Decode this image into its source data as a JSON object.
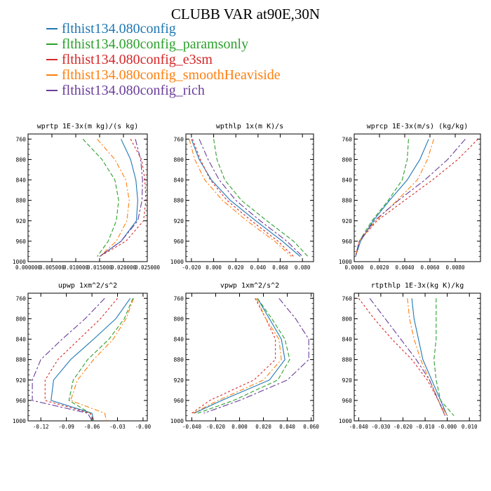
{
  "title": "CLUBB VAR at90E,30N",
  "legend": [
    {
      "label": "flthist134.080config",
      "color": "#1f77b4"
    },
    {
      "label": "flthist134.080config_paramsonly",
      "color": "#2ca02c"
    },
    {
      "label": "flthist134.080config_e3sm",
      "color": "#d62728"
    },
    {
      "label": "flthist134.080config_smoothHeaviside",
      "color": "#ff7f0e"
    },
    {
      "label": "flthist134.080config_rich",
      "color": "#6a3d9a"
    }
  ],
  "chart_data": [
    {
      "type": "line",
      "title": "wprtp  1E-3x(m kg)/(s kg)",
      "xlim": [
        0,
        0.025
      ],
      "ylim": [
        1000,
        750
      ],
      "xticks": [
        "0.000000",
        "0.005000",
        "0.010000",
        "0.015000",
        "0.020000",
        "0.025000"
      ],
      "yticks": [
        "760",
        "800",
        "840",
        "880",
        "920",
        "960",
        "1000"
      ],
      "y": [
        760,
        800,
        840,
        880,
        920,
        960,
        990
      ],
      "series": [
        {
          "name": "flthist134.080config",
          "values": [
            0.0195,
            0.0215,
            0.0226,
            0.023,
            0.0227,
            0.0195,
            0.015
          ]
        },
        {
          "name": "flthist134.080config_paramsonly",
          "values": [
            0.0115,
            0.0155,
            0.0182,
            0.019,
            0.0185,
            0.0168,
            0.0145
          ]
        },
        {
          "name": "flthist134.080config_e3sm",
          "values": [
            0.0215,
            0.0238,
            0.0245,
            0.0247,
            0.0242,
            0.0205,
            0.015
          ]
        },
        {
          "name": "flthist134.080config_smoothHeaviside",
          "values": [
            0.0145,
            0.0182,
            0.0205,
            0.0212,
            0.0207,
            0.0185,
            0.015
          ]
        },
        {
          "name": "flthist134.080config_rich",
          "values": [
            0.0225,
            0.0236,
            0.024,
            0.0239,
            0.023,
            0.0195,
            0.015
          ]
        }
      ]
    },
    {
      "type": "line",
      "title": "wpthlp  1x(m K)/s",
      "xlim": [
        -0.025,
        0.09
      ],
      "ylim": [
        1000,
        750
      ],
      "xticks": [
        "-0.020",
        "0.000",
        "0.020",
        "0.040",
        "0.060",
        "0.080"
      ],
      "yticks": [
        "760",
        "800",
        "840",
        "880",
        "920",
        "960",
        "1000"
      ],
      "y": [
        760,
        800,
        840,
        880,
        920,
        960,
        990
      ],
      "series": [
        {
          "name": "flthist134.080config",
          "values": [
            -0.02,
            -0.013,
            -0.002,
            0.015,
            0.038,
            0.062,
            0.078
          ]
        },
        {
          "name": "flthist134.080config_paramsonly",
          "values": [
            0.0,
            0.003,
            0.01,
            0.025,
            0.048,
            0.072,
            0.085
          ]
        },
        {
          "name": "flthist134.080config_e3sm",
          "values": [
            -0.019,
            -0.012,
            -0.003,
            0.012,
            0.034,
            0.058,
            0.072
          ]
        },
        {
          "name": "flthist134.080config_smoothHeaviside",
          "values": [
            -0.022,
            -0.017,
            -0.008,
            0.008,
            0.03,
            0.055,
            0.07
          ]
        },
        {
          "name": "flthist134.080config_rich",
          "values": [
            -0.013,
            -0.005,
            0.005,
            0.02,
            0.042,
            0.066,
            0.08
          ]
        }
      ]
    },
    {
      "type": "line",
      "title": "wprcp  1E-3x(m/s) (kg/kg)",
      "xlim": [
        0,
        0.01
      ],
      "ylim": [
        1000,
        750
      ],
      "xticks": [
        "0.0000",
        "0.0020",
        "0.0040",
        "0.0060",
        "0.0080"
      ],
      "yticks": [
        "760",
        "800",
        "840",
        "880",
        "920",
        "960",
        "1000"
      ],
      "y": [
        760,
        800,
        840,
        880,
        920,
        960,
        990
      ],
      "series": [
        {
          "name": "flthist134.080config",
          "values": [
            0.0059,
            0.0052,
            0.0042,
            0.0028,
            0.0015,
            0.0005,
            0.0001
          ]
        },
        {
          "name": "flthist134.080config_paramsonly",
          "values": [
            0.0043,
            0.0042,
            0.0038,
            0.0027,
            0.0014,
            0.0004,
            0.0001
          ]
        },
        {
          "name": "flthist134.080config_e3sm",
          "values": [
            0.0098,
            0.0082,
            0.0062,
            0.004,
            0.0018,
            0.0004,
            0.0001
          ]
        },
        {
          "name": "flthist134.080config_smoothHeaviside",
          "values": [
            0.0063,
            0.0058,
            0.005,
            0.0034,
            0.0017,
            0.0004,
            0.0001
          ]
        },
        {
          "name": "flthist134.080config_rich",
          "values": [
            0.0088,
            0.0074,
            0.0056,
            0.0035,
            0.0016,
            0.0004,
            0.0001
          ]
        }
      ]
    },
    {
      "type": "line",
      "title": "upwp  1xm^2/s^2",
      "xlim": [
        -0.135,
        0.005
      ],
      "ylim": [
        1000,
        750
      ],
      "xticks": [
        "-0.12",
        "-0.09",
        "-0.06",
        "-0.03",
        "-0.00"
      ],
      "yticks": [
        "760",
        "800",
        "840",
        "880",
        "920",
        "960",
        "1000"
      ],
      "y": [
        760,
        800,
        840,
        880,
        920,
        960,
        985,
        1000
      ],
      "series": [
        {
          "name": "flthist134.080config",
          "values": [
            -0.015,
            -0.032,
            -0.058,
            -0.085,
            -0.105,
            -0.108,
            -0.06,
            -0.058
          ]
        },
        {
          "name": "flthist134.080config_paramsonly",
          "values": [
            -0.012,
            -0.022,
            -0.04,
            -0.065,
            -0.082,
            -0.087,
            -0.062,
            -0.058
          ]
        },
        {
          "name": "flthist134.080config_e3sm",
          "values": [
            -0.03,
            -0.05,
            -0.075,
            -0.1,
            -0.115,
            -0.115,
            -0.062,
            -0.058
          ]
        },
        {
          "name": "flthist134.080config_smoothHeaviside",
          "values": [
            -0.011,
            -0.02,
            -0.035,
            -0.058,
            -0.077,
            -0.085,
            -0.045,
            -0.043
          ]
        },
        {
          "name": "flthist134.080config_rich",
          "values": [
            -0.045,
            -0.068,
            -0.095,
            -0.12,
            -0.13,
            -0.13,
            -0.065,
            -0.06
          ]
        }
      ]
    },
    {
      "type": "line",
      "title": "vpwp  1xm^2/s^2",
      "xlim": [
        -0.045,
        0.062
      ],
      "ylim": [
        1000,
        750
      ],
      "xticks": [
        "-0.040",
        "-0.020",
        "0.000",
        "0.020",
        "0.040",
        "0.060"
      ],
      "yticks": [
        "760",
        "800",
        "840",
        "880",
        "920",
        "960",
        "1000"
      ],
      "y": [
        760,
        800,
        840,
        880,
        920,
        960,
        985
      ],
      "series": [
        {
          "name": "flthist134.080config",
          "values": [
            0.015,
            0.025,
            0.035,
            0.038,
            0.025,
            -0.015,
            -0.038
          ]
        },
        {
          "name": "flthist134.080config_paramsonly",
          "values": [
            0.015,
            0.027,
            0.038,
            0.042,
            0.032,
            -0.005,
            -0.035
          ]
        },
        {
          "name": "flthist134.080config_e3sm",
          "values": [
            0.013,
            0.022,
            0.03,
            0.03,
            0.012,
            -0.025,
            -0.04
          ]
        },
        {
          "name": "flthist134.080config_smoothHeaviside",
          "values": [
            0.014,
            0.022,
            0.033,
            0.035,
            0.02,
            -0.018,
            -0.039
          ]
        },
        {
          "name": "flthist134.080config_rich",
          "values": [
            0.033,
            0.047,
            0.058,
            0.058,
            0.04,
            0.0,
            -0.03
          ]
        }
      ]
    },
    {
      "type": "line",
      "title": "rtpthlp  1E-3x(kg K)/kg",
      "xlim": [
        -0.042,
        0.015
      ],
      "ylim": [
        1000,
        750
      ],
      "xticks": [
        "-0.040",
        "-0.030",
        "-0.020",
        "-0.010",
        "-0.000",
        "0.010"
      ],
      "yticks": [
        "760",
        "800",
        "840",
        "880",
        "920",
        "960",
        "1000"
      ],
      "y": [
        760,
        800,
        840,
        880,
        920,
        960,
        990
      ],
      "series": [
        {
          "name": "flthist134.080config",
          "values": [
            -0.016,
            -0.015,
            -0.013,
            -0.011,
            -0.007,
            -0.003,
            0.0
          ]
        },
        {
          "name": "flthist134.080config_paramsonly",
          "values": [
            -0.005,
            -0.005,
            -0.005,
            -0.006,
            -0.005,
            -0.003,
            0.003
          ]
        },
        {
          "name": "flthist134.080config_e3sm",
          "values": [
            -0.04,
            -0.033,
            -0.025,
            -0.016,
            -0.009,
            -0.004,
            -0.001
          ]
        },
        {
          "name": "flthist134.080config_smoothHeaviside",
          "values": [
            -0.018,
            -0.017,
            -0.015,
            -0.012,
            -0.008,
            -0.004,
            0.0
          ]
        },
        {
          "name": "flthist134.080config_rich",
          "values": [
            -0.035,
            -0.028,
            -0.021,
            -0.014,
            -0.008,
            -0.004,
            -0.001
          ]
        }
      ]
    }
  ]
}
